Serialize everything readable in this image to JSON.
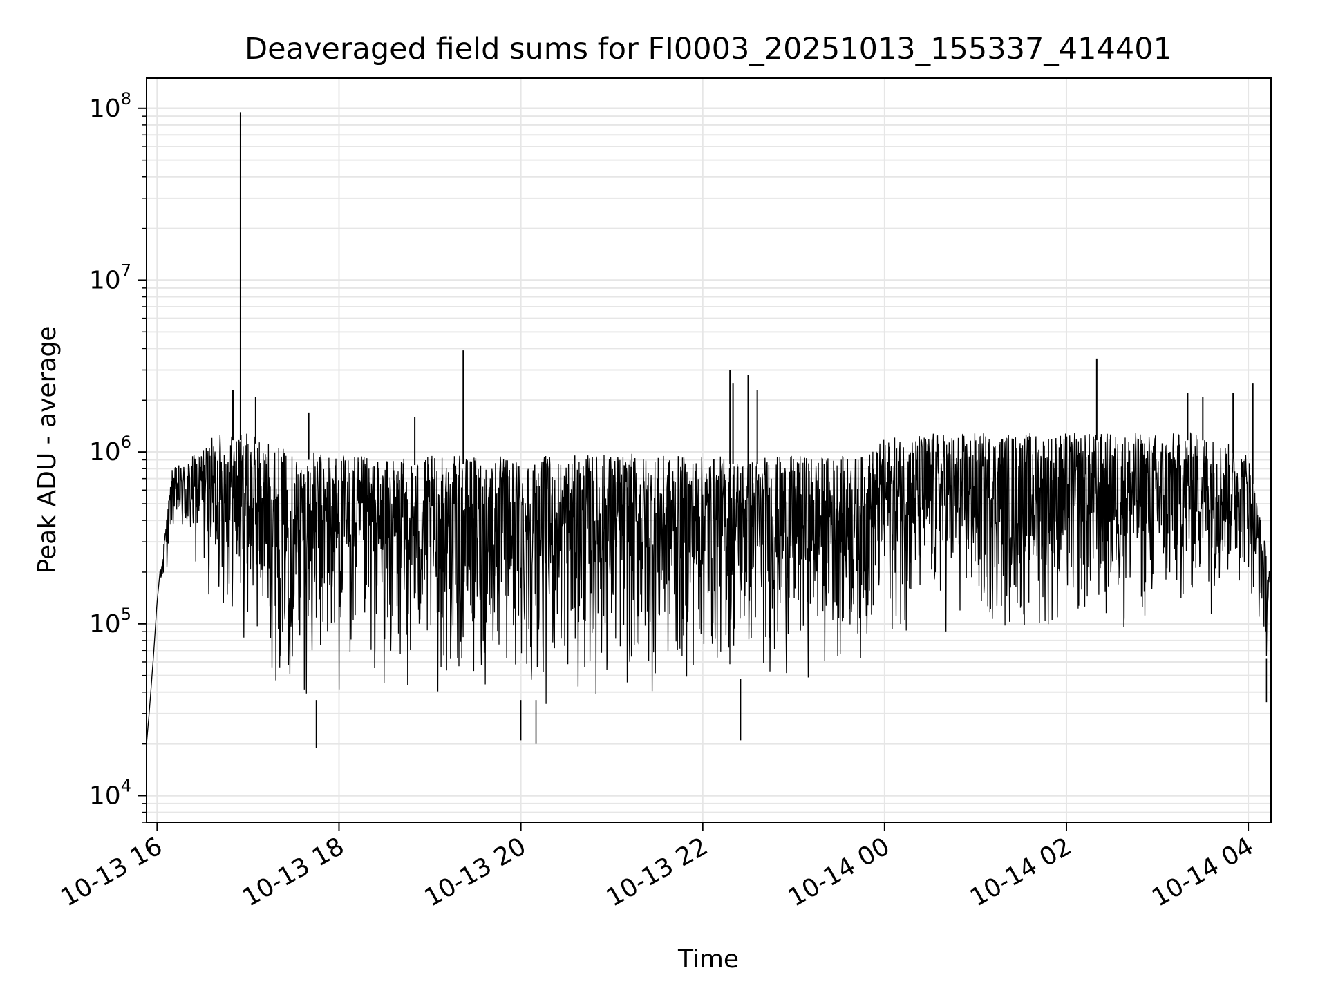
{
  "chart_data": {
    "type": "line",
    "title": "Deaveraged field sums for FI0003_20251013_155337_414401",
    "xlabel": "Time",
    "ylabel": "Peak ADU - average",
    "yscale": "log",
    "xlim": [
      "2025-10-13 15:53",
      "2025-10-14 04:15"
    ],
    "ylim": [
      7000,
      150000000
    ],
    "grid": true,
    "x_tick_labels": [
      "10-13 16",
      "10-13 18",
      "10-13 20",
      "10-13 22",
      "10-14 00",
      "10-14 02",
      "10-14 04"
    ],
    "x_tick_values": [
      "2025-10-13 16:00",
      "2025-10-13 18:00",
      "2025-10-13 20:00",
      "2025-10-13 22:00",
      "2025-10-14 00:00",
      "2025-10-14 02:00",
      "2025-10-14 04:00"
    ],
    "y_tick_labels": [
      {
        "base": "10",
        "exp": "4",
        "value": 10000
      },
      {
        "base": "10",
        "exp": "5",
        "value": 100000
      },
      {
        "base": "10",
        "exp": "6",
        "value": 1000000
      },
      {
        "base": "10",
        "exp": "7",
        "value": 10000000
      },
      {
        "base": "10",
        "exp": "8",
        "value": 100000000
      }
    ],
    "line_color": "#000000",
    "series_envelope": {
      "time": [
        "2025-10-13 15:53",
        "2025-10-13 16:00",
        "2025-10-13 16:10",
        "2025-10-13 16:20",
        "2025-10-13 16:40",
        "2025-10-13 17:00",
        "2025-10-13 17:30",
        "2025-10-13 18:00",
        "2025-10-13 18:30",
        "2025-10-13 19:00",
        "2025-10-13 19:30",
        "2025-10-13 20:00",
        "2025-10-13 20:30",
        "2025-10-13 21:00",
        "2025-10-13 21:30",
        "2025-10-13 22:00",
        "2025-10-13 22:30",
        "2025-10-13 23:00",
        "2025-10-13 23:30",
        "2025-10-13 23:45",
        "2025-10-14 00:00",
        "2025-10-14 00:30",
        "2025-10-14 01:00",
        "2025-10-14 01:30",
        "2025-10-14 02:00",
        "2025-10-14 02:30",
        "2025-10-14 03:00",
        "2025-10-14 03:30",
        "2025-10-14 04:00",
        "2025-10-14 04:15"
      ],
      "high": [
        20000,
        150000,
        800000,
        900000,
        1300000,
        1300000,
        1000000,
        1000000,
        900000,
        950000,
        950000,
        950000,
        950000,
        1000000,
        950000,
        950000,
        950000,
        950000,
        950000,
        950000,
        1200000,
        1300000,
        1300000,
        1300000,
        1300000,
        1300000,
        1300000,
        1300000,
        1000000,
        200000
      ],
      "low": [
        20000,
        100000,
        300000,
        200000,
        100000,
        60000,
        30000,
        30000,
        30000,
        30000,
        30000,
        30000,
        30000,
        30000,
        30000,
        40000,
        40000,
        40000,
        50000,
        50000,
        70000,
        70000,
        70000,
        70000,
        70000,
        70000,
        70000,
        100000,
        150000,
        40000
      ]
    },
    "spikes": [
      {
        "time": "2025-10-13 16:55",
        "value": 95000000
      },
      {
        "time": "2025-10-13 16:50",
        "value": 2300000
      },
      {
        "time": "2025-10-13 17:05",
        "value": 2100000
      },
      {
        "time": "2025-10-13 17:40",
        "value": 1700000
      },
      {
        "time": "2025-10-13 18:50",
        "value": 1600000
      },
      {
        "time": "2025-10-13 19:22",
        "value": 3900000
      },
      {
        "time": "2025-10-13 22:18",
        "value": 3000000
      },
      {
        "time": "2025-10-13 22:20",
        "value": 2500000
      },
      {
        "time": "2025-10-13 22:30",
        "value": 2800000
      },
      {
        "time": "2025-10-13 22:36",
        "value": 2300000
      },
      {
        "time": "2025-10-14 02:20",
        "value": 3500000
      },
      {
        "time": "2025-10-14 03:20",
        "value": 2200000
      },
      {
        "time": "2025-10-14 03:30",
        "value": 2100000
      },
      {
        "time": "2025-10-14 03:50",
        "value": 2200000
      },
      {
        "time": "2025-10-14 04:03",
        "value": 2500000
      }
    ],
    "dips": [
      {
        "time": "2025-10-13 17:45",
        "value": 19000
      },
      {
        "time": "2025-10-13 20:00",
        "value": 21000
      },
      {
        "time": "2025-10-13 20:10",
        "value": 20000
      },
      {
        "time": "2025-10-13 22:25",
        "value": 21000
      },
      {
        "time": "2025-10-14 04:12",
        "value": 35000
      }
    ]
  }
}
